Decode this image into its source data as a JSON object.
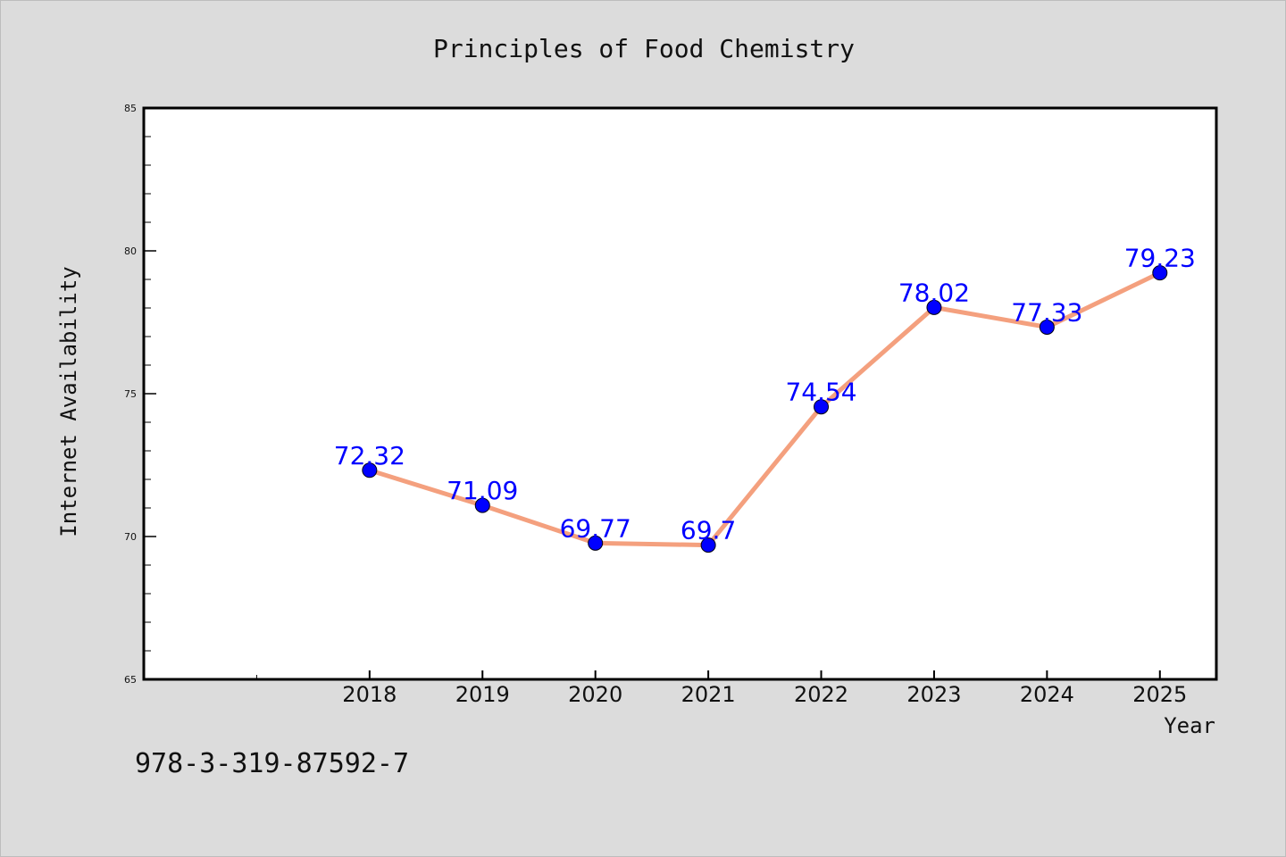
{
  "chart_data": {
    "type": "line",
    "title": "Principles of Food Chemistry",
    "xlabel": "Year",
    "ylabel": "Internet Availability",
    "x": [
      2018,
      2019,
      2020,
      2021,
      2022,
      2023,
      2024,
      2025
    ],
    "x_tick_labels": [
      "2018",
      "2019",
      "2020",
      "2021",
      "2022",
      "2023",
      "2024",
      "2025"
    ],
    "series": [
      {
        "values": [
          72.32,
          71.09,
          69.77,
          69.7,
          74.54,
          78.02,
          77.33,
          79.23
        ],
        "data_labels": [
          "72.32",
          "71.09",
          "69.77",
          "69.7",
          "74.54",
          "78.02",
          "77.33",
          "79.23"
        ],
        "line_color": "#f4a07e",
        "marker_color": "#0000ff"
      }
    ],
    "xlim": [
      2016,
      2025.5
    ],
    "ylim": [
      65,
      85
    ],
    "y_ticks": [
      65,
      70,
      75,
      80,
      85
    ],
    "y_tick_labels": [
      "65",
      "70",
      "75",
      "80",
      "85"
    ],
    "grid": false,
    "annotation": "978-3-319-87592-7",
    "label_color": "#0000ff",
    "background_color": "#dcdcdc",
    "plot_background_color": "#ffffff"
  }
}
